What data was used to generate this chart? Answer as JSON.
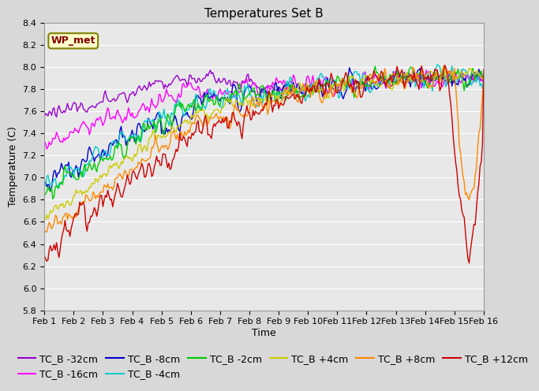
{
  "title": "Temperatures Set B",
  "xlabel": "Time",
  "ylabel": "Temperature (C)",
  "ylim": [
    5.8,
    8.4
  ],
  "xlim": [
    0,
    360
  ],
  "x_tick_labels": [
    "Feb 1",
    "Feb 2",
    "Feb 3",
    "Feb 4",
    "Feb 5",
    "Feb 6",
    "Feb 7",
    "Feb 8",
    "Feb 9",
    "Feb 10",
    "Feb 11",
    "Feb 12",
    "Feb 13",
    "Feb 14",
    "Feb 15",
    "Feb 16"
  ],
  "x_tick_positions": [
    0,
    24,
    48,
    72,
    96,
    120,
    144,
    168,
    192,
    216,
    240,
    264,
    288,
    312,
    336,
    360
  ],
  "series": [
    {
      "label": "TC_B -32cm",
      "color": "#9900cc"
    },
    {
      "label": "TC_B -16cm",
      "color": "#ff00ff"
    },
    {
      "label": "TC_B -8cm",
      "color": "#0000cc"
    },
    {
      "label": "TC_B -4cm",
      "color": "#00cccc"
    },
    {
      "label": "TC_B -2cm",
      "color": "#00cc00"
    },
    {
      "label": "TC_B +4cm",
      "color": "#cccc00"
    },
    {
      "label": "TC_B +8cm",
      "color": "#ff8800"
    },
    {
      "label": "TC_B +12cm",
      "color": "#cc0000"
    }
  ],
  "wp_met_box_color": "#ffffcc",
  "wp_met_text_color": "#800000",
  "wp_met_border_color": "#808000",
  "background_color": "#e8e8e8",
  "grid_color": "#ffffff",
  "title_fontsize": 11,
  "axis_fontsize": 9,
  "tick_fontsize": 8,
  "legend_fontsize": 9,
  "yticks": [
    5.8,
    6.0,
    6.2,
    6.4,
    6.6,
    6.8,
    7.0,
    7.2,
    7.4,
    7.6,
    7.8,
    8.0,
    8.2,
    8.4
  ]
}
